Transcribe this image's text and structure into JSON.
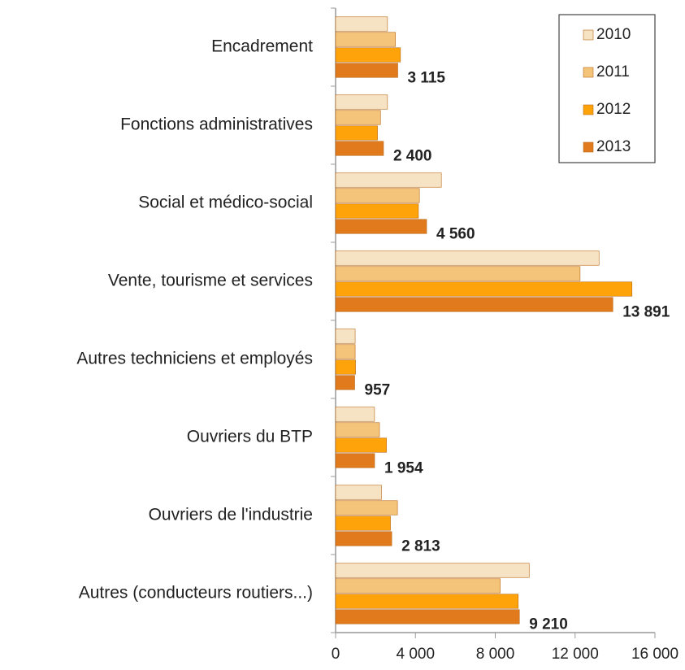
{
  "chart_data": {
    "type": "barh",
    "categories": [
      "Encadrement",
      "Fonctions administratives",
      "Social et médico-social",
      "Vente, tourisme et services",
      "Autres techniciens et employés",
      "Ouvriers du BTP",
      "Ouvriers de l'industrie",
      "Autres (conducteurs routiers...)"
    ],
    "series": [
      {
        "name": "2010",
        "color": "#f6e3c4",
        "values": [
          2600,
          2600,
          5300,
          13200,
          980,
          1950,
          2300,
          9700
        ]
      },
      {
        "name": "2011",
        "color": "#f3c47a",
        "values": [
          3000,
          2250,
          4200,
          12250,
          980,
          2200,
          3100,
          8250
        ]
      },
      {
        "name": "2012",
        "color": "#ffa30a",
        "values": [
          3250,
          2100,
          4150,
          14850,
          1000,
          2550,
          2750,
          9150
        ]
      },
      {
        "name": "2013",
        "color": "#e07a1c",
        "values": [
          3115,
          2400,
          4560,
          13891,
          957,
          1954,
          2813,
          9210
        ],
        "value_labels": [
          "3 115",
          "2 400",
          "4 560",
          "13 891",
          "957",
          "1 954",
          "2 813",
          "9 210"
        ]
      }
    ],
    "xlim": [
      0,
      16000
    ],
    "xticks": [
      0,
      {
        "value": 4000,
        "label": "4 000"
      },
      {
        "value": 8000,
        "label": "8 000"
      },
      {
        "value": 12000,
        "label": "12 000"
      },
      {
        "value": 16000,
        "label": "16 000"
      }
    ],
    "legend": "upper right"
  }
}
